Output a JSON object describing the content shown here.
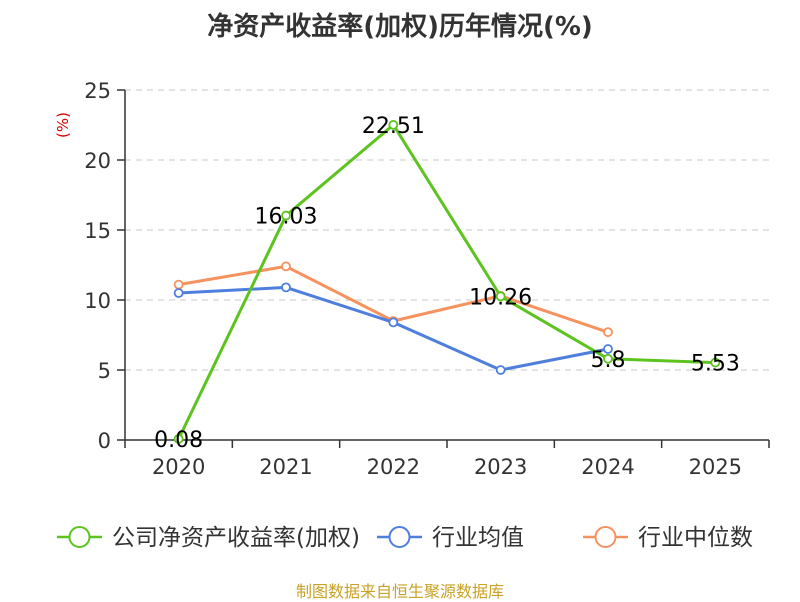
{
  "chart_data": {
    "type": "line",
    "title": "净资产收益率(加权)历年情况(%)",
    "ylabel": "(%)",
    "xlabel": "",
    "categories": [
      "2020",
      "2021",
      "2022",
      "2023",
      "2024",
      "2025"
    ],
    "ylim": [
      0,
      25
    ],
    "yticks": [
      0,
      5,
      10,
      15,
      20,
      25
    ],
    "grid": true,
    "legend_position": "bottom",
    "series": [
      {
        "name": "公司净资产收益率(加权)",
        "color": "#5cc31f",
        "values": [
          0.08,
          16.03,
          22.51,
          10.26,
          5.8,
          5.53
        ],
        "labels": [
          "0.08",
          "16.03",
          "22.51",
          "10.26",
          "5.8",
          "5.53"
        ]
      },
      {
        "name": "行业均值",
        "color": "#4f7fdc",
        "values": [
          10.5,
          10.9,
          8.4,
          5.0,
          6.5,
          null
        ]
      },
      {
        "name": "行业中位数",
        "color": "#f5925e",
        "values": [
          11.1,
          12.4,
          8.5,
          10.3,
          7.7,
          null
        ]
      }
    ]
  },
  "source_note": "制图数据来自恒生聚源数据库"
}
